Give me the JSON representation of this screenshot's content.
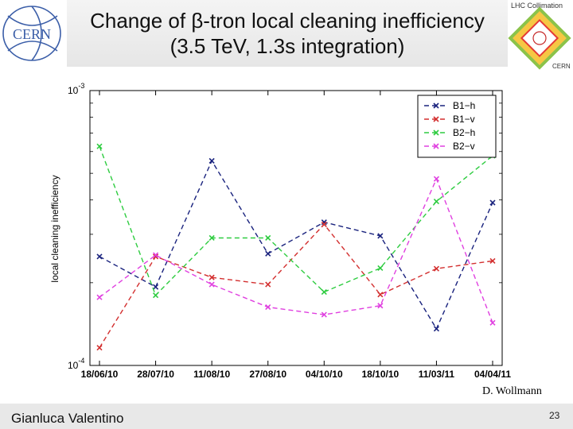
{
  "header": {
    "title_line1": "Change of β-tron local cleaning inefficiency",
    "title_line2": "(3.5 TeV, 1.3s integration)",
    "left_logo_text": "CERN",
    "right_logo_text": "LHC Collimation",
    "right_logo_sub": "CERN"
  },
  "chart_data": {
    "type": "line",
    "ylabel": "local cleaning inefficiency",
    "xlabel": "",
    "yscale": "log",
    "ylim": [
      0.0001,
      0.001
    ],
    "ytick_labels": [
      "10^-4",
      "10^-3"
    ],
    "categories": [
      "18/06/10",
      "28/07/10",
      "11/08/10",
      "27/08/10",
      "04/10/10",
      "18/10/10",
      "11/03/11",
      "04/04/11"
    ],
    "legend_position": "top-right",
    "series": [
      {
        "name": "B1−h",
        "color": "#1a237e",
        "values": [
          0.000249,
          0.000193,
          0.000555,
          0.000255,
          0.000332,
          0.000296,
          0.000136,
          0.000391
        ]
      },
      {
        "name": "B1−v",
        "color": "#d32f2f",
        "values": [
          0.000116,
          0.000249,
          0.000209,
          0.000197,
          0.000326,
          0.000181,
          0.000225,
          0.00024
        ]
      },
      {
        "name": "B2−h",
        "color": "#2ecc40",
        "values": [
          0.000627,
          0.00018,
          0.000291,
          0.000291,
          0.000185,
          0.000226,
          0.000395,
          0.000579
        ]
      },
      {
        "name": "B2−v",
        "color": "#e040e0",
        "values": [
          0.000177,
          0.000252,
          0.000197,
          0.000163,
          0.000153,
          0.000165,
          0.000477,
          0.000143
        ]
      }
    ]
  },
  "credit": "D. Wollmann",
  "footer": {
    "presenter": "Gianluca Valentino",
    "page_number": "23"
  }
}
